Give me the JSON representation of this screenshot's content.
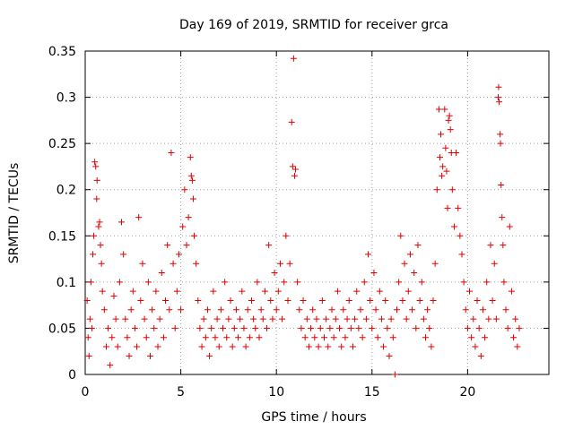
{
  "chart_data": {
    "type": "scatter",
    "title": "Day 169 of 2019, SRMTID for receiver grca",
    "xlabel": "GPS time / hours",
    "ylabel": "SRMTID / TECUs",
    "xlim": [
      0,
      24.25
    ],
    "ylim": [
      0,
      0.35
    ],
    "x_ticks": [
      0,
      5,
      10,
      15,
      20
    ],
    "y_ticks": [
      0,
      0.05,
      0.1,
      0.15,
      0.2,
      0.25,
      0.3,
      0.35
    ],
    "x_tick_labels": [
      "0",
      "5",
      "10",
      "15",
      "20"
    ],
    "y_tick_labels": [
      "0",
      "0.05",
      "0.1",
      "0.15",
      "0.2",
      "0.25",
      "0.3",
      "0.35"
    ],
    "grid": true,
    "marker": "plus",
    "color": "#e00000",
    "series": [
      {
        "name": "SRMTID",
        "points": [
          [
            0.1,
            0.08
          ],
          [
            0.15,
            0.04
          ],
          [
            0.2,
            0.02
          ],
          [
            0.25,
            0.06
          ],
          [
            0.3,
            0.1
          ],
          [
            0.35,
            0.05
          ],
          [
            0.4,
            0.13
          ],
          [
            0.45,
            0.15
          ],
          [
            0.5,
            0.23
          ],
          [
            0.55,
            0.225
          ],
          [
            0.6,
            0.19
          ],
          [
            0.62,
            0.21
          ],
          [
            0.7,
            0.16
          ],
          [
            0.75,
            0.165
          ],
          [
            0.8,
            0.14
          ],
          [
            0.85,
            0.12
          ],
          [
            0.9,
            0.09
          ],
          [
            1.0,
            0.07
          ],
          [
            1.1,
            0.03
          ],
          [
            1.2,
            0.05
          ],
          [
            1.3,
            0.01
          ],
          [
            1.4,
            0.04
          ],
          [
            1.5,
            0.085
          ],
          [
            1.6,
            0.06
          ],
          [
            1.7,
            0.03
          ],
          [
            1.8,
            0.1
          ],
          [
            1.9,
            0.165
          ],
          [
            2.0,
            0.13
          ],
          [
            2.1,
            0.06
          ],
          [
            2.2,
            0.04
          ],
          [
            2.3,
            0.02
          ],
          [
            2.4,
            0.07
          ],
          [
            2.5,
            0.09
          ],
          [
            2.6,
            0.05
          ],
          [
            2.7,
            0.03
          ],
          [
            2.8,
            0.17
          ],
          [
            2.9,
            0.08
          ],
          [
            3.0,
            0.12
          ],
          [
            3.1,
            0.06
          ],
          [
            3.2,
            0.04
          ],
          [
            3.3,
            0.1
          ],
          [
            3.4,
            0.02
          ],
          [
            3.5,
            0.07
          ],
          [
            3.6,
            0.05
          ],
          [
            3.7,
            0.09
          ],
          [
            3.8,
            0.03
          ],
          [
            3.9,
            0.06
          ],
          [
            4.0,
            0.11
          ],
          [
            4.1,
            0.04
          ],
          [
            4.2,
            0.08
          ],
          [
            4.3,
            0.14
          ],
          [
            4.4,
            0.07
          ],
          [
            4.5,
            0.24
          ],
          [
            4.6,
            0.12
          ],
          [
            4.7,
            0.05
          ],
          [
            4.8,
            0.09
          ],
          [
            4.9,
            0.13
          ],
          [
            5.0,
            0.07
          ],
          [
            5.1,
            0.16
          ],
          [
            5.2,
            0.2
          ],
          [
            5.3,
            0.14
          ],
          [
            5.4,
            0.17
          ],
          [
            5.5,
            0.235
          ],
          [
            5.55,
            0.215
          ],
          [
            5.6,
            0.21
          ],
          [
            5.65,
            0.19
          ],
          [
            5.7,
            0.15
          ],
          [
            5.8,
            0.12
          ],
          [
            5.9,
            0.08
          ],
          [
            6.0,
            0.05
          ],
          [
            6.1,
            0.03
          ],
          [
            6.2,
            0.06
          ],
          [
            6.3,
            0.04
          ],
          [
            6.4,
            0.07
          ],
          [
            6.5,
            0.02
          ],
          [
            6.6,
            0.05
          ],
          [
            6.7,
            0.09
          ],
          [
            6.8,
            0.04
          ],
          [
            6.9,
            0.06
          ],
          [
            7.0,
            0.03
          ],
          [
            7.1,
            0.07
          ],
          [
            7.2,
            0.05
          ],
          [
            7.3,
            0.1
          ],
          [
            7.4,
            0.04
          ],
          [
            7.5,
            0.06
          ],
          [
            7.6,
            0.08
          ],
          [
            7.7,
            0.03
          ],
          [
            7.8,
            0.05
          ],
          [
            7.9,
            0.07
          ],
          [
            8.0,
            0.04
          ],
          [
            8.1,
            0.06
          ],
          [
            8.2,
            0.09
          ],
          [
            8.3,
            0.05
          ],
          [
            8.4,
            0.03
          ],
          [
            8.5,
            0.07
          ],
          [
            8.6,
            0.04
          ],
          [
            8.7,
            0.08
          ],
          [
            8.8,
            0.06
          ],
          [
            8.9,
            0.05
          ],
          [
            9.0,
            0.1
          ],
          [
            9.1,
            0.04
          ],
          [
            9.2,
            0.07
          ],
          [
            9.3,
            0.06
          ],
          [
            9.4,
            0.09
          ],
          [
            9.5,
            0.05
          ],
          [
            9.6,
            0.14
          ],
          [
            9.7,
            0.08
          ],
          [
            9.8,
            0.06
          ],
          [
            9.9,
            0.11
          ],
          [
            10.0,
            0.07
          ],
          [
            10.1,
            0.09
          ],
          [
            10.2,
            0.12
          ],
          [
            10.3,
            0.06
          ],
          [
            10.4,
            0.1
          ],
          [
            10.5,
            0.15
          ],
          [
            10.6,
            0.08
          ],
          [
            10.7,
            0.12
          ],
          [
            10.8,
            0.273
          ],
          [
            10.85,
            0.225
          ],
          [
            10.9,
            0.342
          ],
          [
            10.95,
            0.215
          ],
          [
            11.0,
            0.222
          ],
          [
            11.1,
            0.1
          ],
          [
            11.2,
            0.07
          ],
          [
            11.3,
            0.05
          ],
          [
            11.4,
            0.08
          ],
          [
            11.5,
            0.04
          ],
          [
            11.6,
            0.06
          ],
          [
            11.7,
            0.03
          ],
          [
            11.8,
            0.05
          ],
          [
            11.9,
            0.07
          ],
          [
            12.0,
            0.04
          ],
          [
            12.1,
            0.06
          ],
          [
            12.2,
            0.03
          ],
          [
            12.3,
            0.05
          ],
          [
            12.4,
            0.08
          ],
          [
            12.5,
            0.04
          ],
          [
            12.6,
            0.06
          ],
          [
            12.7,
            0.03
          ],
          [
            12.8,
            0.05
          ],
          [
            12.9,
            0.07
          ],
          [
            13.0,
            0.04
          ],
          [
            13.1,
            0.06
          ],
          [
            13.2,
            0.09
          ],
          [
            13.3,
            0.05
          ],
          [
            13.4,
            0.03
          ],
          [
            13.5,
            0.07
          ],
          [
            13.6,
            0.04
          ],
          [
            13.7,
            0.06
          ],
          [
            13.8,
            0.08
          ],
          [
            13.9,
            0.05
          ],
          [
            14.0,
            0.03
          ],
          [
            14.1,
            0.06
          ],
          [
            14.2,
            0.09
          ],
          [
            14.3,
            0.05
          ],
          [
            14.4,
            0.07
          ],
          [
            14.5,
            0.04
          ],
          [
            14.6,
            0.1
          ],
          [
            14.7,
            0.06
          ],
          [
            14.8,
            0.13
          ],
          [
            14.9,
            0.08
          ],
          [
            15.0,
            0.05
          ],
          [
            15.1,
            0.11
          ],
          [
            15.2,
            0.07
          ],
          [
            15.3,
            0.04
          ],
          [
            15.4,
            0.09
          ],
          [
            15.5,
            0.06
          ],
          [
            15.6,
            0.03
          ],
          [
            15.7,
            0.08
          ],
          [
            15.8,
            0.05
          ],
          [
            15.9,
            0.02
          ],
          [
            16.0,
            0.06
          ],
          [
            16.1,
            0.04
          ],
          [
            16.2,
            0.0
          ],
          [
            16.3,
            0.07
          ],
          [
            16.4,
            0.1
          ],
          [
            16.5,
            0.15
          ],
          [
            16.6,
            0.08
          ],
          [
            16.7,
            0.12
          ],
          [
            16.8,
            0.06
          ],
          [
            16.9,
            0.09
          ],
          [
            17.0,
            0.13
          ],
          [
            17.1,
            0.07
          ],
          [
            17.2,
            0.11
          ],
          [
            17.3,
            0.05
          ],
          [
            17.4,
            0.14
          ],
          [
            17.5,
            0.08
          ],
          [
            17.6,
            0.1
          ],
          [
            17.7,
            0.06
          ],
          [
            17.8,
            0.04
          ],
          [
            17.9,
            0.07
          ],
          [
            18.0,
            0.05
          ],
          [
            18.1,
            0.03
          ],
          [
            18.2,
            0.08
          ],
          [
            18.3,
            0.12
          ],
          [
            18.4,
            0.2
          ],
          [
            18.5,
            0.287
          ],
          [
            18.55,
            0.235
          ],
          [
            18.6,
            0.26
          ],
          [
            18.65,
            0.215
          ],
          [
            18.7,
            0.225
          ],
          [
            18.8,
            0.287
          ],
          [
            18.85,
            0.245
          ],
          [
            18.9,
            0.22
          ],
          [
            18.95,
            0.18
          ],
          [
            19.0,
            0.275
          ],
          [
            19.05,
            0.28
          ],
          [
            19.1,
            0.265
          ],
          [
            19.15,
            0.24
          ],
          [
            19.2,
            0.2
          ],
          [
            19.3,
            0.16
          ],
          [
            19.4,
            0.24
          ],
          [
            19.5,
            0.18
          ],
          [
            19.6,
            0.15
          ],
          [
            19.7,
            0.13
          ],
          [
            19.8,
            0.1
          ],
          [
            19.9,
            0.07
          ],
          [
            20.0,
            0.05
          ],
          [
            20.1,
            0.09
          ],
          [
            20.2,
            0.04
          ],
          [
            20.3,
            0.06
          ],
          [
            20.4,
            0.03
          ],
          [
            20.5,
            0.08
          ],
          [
            20.6,
            0.05
          ],
          [
            20.7,
            0.02
          ],
          [
            20.8,
            0.07
          ],
          [
            20.9,
            0.04
          ],
          [
            21.0,
            0.1
          ],
          [
            21.1,
            0.06
          ],
          [
            21.2,
            0.14
          ],
          [
            21.3,
            0.08
          ],
          [
            21.4,
            0.12
          ],
          [
            21.5,
            0.06
          ],
          [
            21.6,
            0.3
          ],
          [
            21.62,
            0.311
          ],
          [
            21.65,
            0.295
          ],
          [
            21.7,
            0.26
          ],
          [
            21.72,
            0.25
          ],
          [
            21.75,
            0.205
          ],
          [
            21.8,
            0.17
          ],
          [
            21.85,
            0.14
          ],
          [
            21.9,
            0.1
          ],
          [
            22.0,
            0.07
          ],
          [
            22.1,
            0.05
          ],
          [
            22.2,
            0.16
          ],
          [
            22.3,
            0.09
          ],
          [
            22.4,
            0.04
          ],
          [
            22.5,
            0.06
          ],
          [
            22.6,
            0.03
          ],
          [
            22.7,
            0.05
          ]
        ]
      }
    ]
  }
}
